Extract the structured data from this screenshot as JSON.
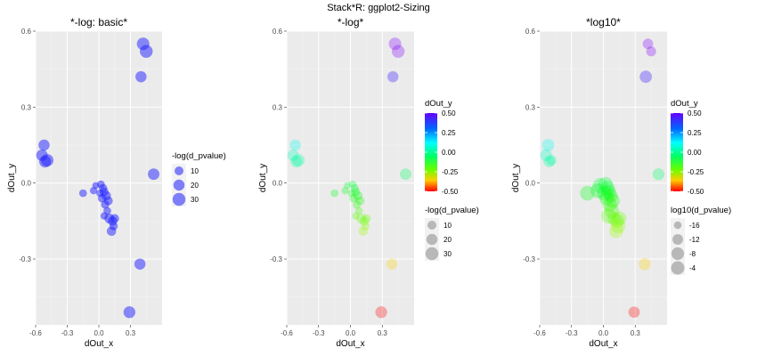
{
  "page_title": "Stack*R: ggplot2-Sizing",
  "chart_data": [
    {
      "type": "scatter",
      "title": "*-log: basic*",
      "xlabel": "dOut_x",
      "ylabel": "dOut_y",
      "xlim": [
        -0.6,
        0.6
      ],
      "ylim": [
        -0.56,
        0.6
      ],
      "xticks": [
        -0.6,
        -0.3,
        0.0,
        0.3
      ],
      "xtick_labels": [
        "-0.6",
        "-0.3",
        "0.0",
        "0.3"
      ],
      "yticks": [
        0.6,
        0.3,
        0.0,
        -0.3
      ],
      "ytick_labels": [
        "0.6",
        "0.3",
        "0.0",
        "-0.3"
      ],
      "grid": true,
      "color_mode": "constant",
      "point_color": "#1f1fff",
      "point_opacity": 0.5,
      "size_mode": "neglog",
      "legend": {
        "placement": "right",
        "size_title": "-log(d_pvalue)",
        "size_labels": [
          "10",
          "20",
          "30"
        ],
        "size_values": [
          10,
          20,
          30
        ]
      }
    },
    {
      "type": "scatter",
      "title": "*-log*",
      "xlabel": "dOut_x",
      "ylabel": "dOut_y",
      "xlim": [
        -0.6,
        0.6
      ],
      "ylim": [
        -0.56,
        0.6
      ],
      "xticks": [
        -0.6,
        -0.3,
        0.0,
        0.3
      ],
      "xtick_labels": [
        "-0.6",
        "-0.3",
        "0.0",
        "0.3"
      ],
      "yticks": [
        0.6,
        0.3,
        0.0,
        -0.3
      ],
      "ytick_labels": [
        "0.6",
        "0.3",
        "0.0",
        "-0.3"
      ],
      "grid": true,
      "color_mode": "rainbow",
      "point_opacity": 0.3,
      "size_mode": "neglog",
      "legend": {
        "placement": "right",
        "color_title": "dOut_y",
        "color_labels": [
          "0.50",
          "0.25",
          "0.00",
          "-0.25",
          "-0.50"
        ],
        "color_values": [
          0.5,
          0.25,
          0.0,
          -0.25,
          -0.5
        ],
        "size_title": "-log(d_pvalue)",
        "size_labels": [
          "10",
          "20",
          "30"
        ],
        "size_values": [
          10,
          20,
          30
        ]
      }
    },
    {
      "type": "scatter",
      "title": "*log10*",
      "xlabel": "dOut_x",
      "ylabel": "dOut_y",
      "xlim": [
        -0.6,
        0.6
      ],
      "ylim": [
        -0.56,
        0.6
      ],
      "xticks": [
        -0.6,
        -0.3,
        0.0,
        0.3
      ],
      "xtick_labels": [
        "-0.6",
        "-0.3",
        "0.0",
        "0.3"
      ],
      "yticks": [
        0.6,
        0.3,
        0.0,
        -0.3
      ],
      "ytick_labels": [
        "0.6",
        "0.3",
        "0.0",
        "-0.3"
      ],
      "grid": true,
      "color_mode": "rainbow",
      "point_opacity": 0.3,
      "size_mode": "log10",
      "legend": {
        "placement": "right",
        "color_title": "dOut_y",
        "color_labels": [
          "0.50",
          "0.25",
          "0.00",
          "-0.25",
          "-0.50"
        ],
        "color_values": [
          0.5,
          0.25,
          0.0,
          -0.25,
          -0.5
        ],
        "size_title": "log10(d_pvalue)",
        "size_labels": [
          "-16",
          "-12",
          "-8",
          "-4"
        ],
        "size_values": [
          -16,
          -12,
          -8,
          -4
        ]
      }
    }
  ],
  "points": [
    {
      "x": 0.42,
      "y": 0.55,
      "neglog": 28
    },
    {
      "x": 0.45,
      "y": 0.52,
      "neglog": 30
    },
    {
      "x": 0.4,
      "y": 0.42,
      "neglog": 20
    },
    {
      "x": -0.52,
      "y": 0.15,
      "neglog": 20
    },
    {
      "x": -0.54,
      "y": 0.11,
      "neglog": 22
    },
    {
      "x": -0.49,
      "y": 0.09,
      "neglog": 28
    },
    {
      "x": -0.51,
      "y": 0.085,
      "neglog": 24
    },
    {
      "x": 0.52,
      "y": 0.035,
      "neglog": 22
    },
    {
      "x": -0.15,
      "y": -0.04,
      "neglog": 6
    },
    {
      "x": -0.03,
      "y": -0.01,
      "neglog": 4
    },
    {
      "x": 0.02,
      "y": -0.005,
      "neglog": 6
    },
    {
      "x": 0.04,
      "y": -0.02,
      "neglog": 8
    },
    {
      "x": 0.05,
      "y": -0.035,
      "neglog": 10
    },
    {
      "x": 0.07,
      "y": -0.05,
      "neglog": 12
    },
    {
      "x": 0.03,
      "y": -0.06,
      "neglog": 8
    },
    {
      "x": 0.09,
      "y": -0.07,
      "neglog": 10
    },
    {
      "x": 0.06,
      "y": -0.085,
      "neglog": 8
    },
    {
      "x": 0.01,
      "y": -0.04,
      "neglog": 5
    },
    {
      "x": -0.05,
      "y": -0.03,
      "neglog": 5
    },
    {
      "x": 0.08,
      "y": -0.11,
      "neglog": 6
    },
    {
      "x": 0.05,
      "y": -0.13,
      "neglog": 5
    },
    {
      "x": 0.1,
      "y": -0.14,
      "neglog": 14
    },
    {
      "x": 0.13,
      "y": -0.15,
      "neglog": 12
    },
    {
      "x": 0.15,
      "y": -0.14,
      "neglog": 10
    },
    {
      "x": 0.14,
      "y": -0.17,
      "neglog": 8
    },
    {
      "x": 0.12,
      "y": -0.19,
      "neglog": 12
    },
    {
      "x": 0.39,
      "y": -0.32,
      "neglog": 20
    },
    {
      "x": 0.29,
      "y": -0.51,
      "neglog": 24
    }
  ]
}
